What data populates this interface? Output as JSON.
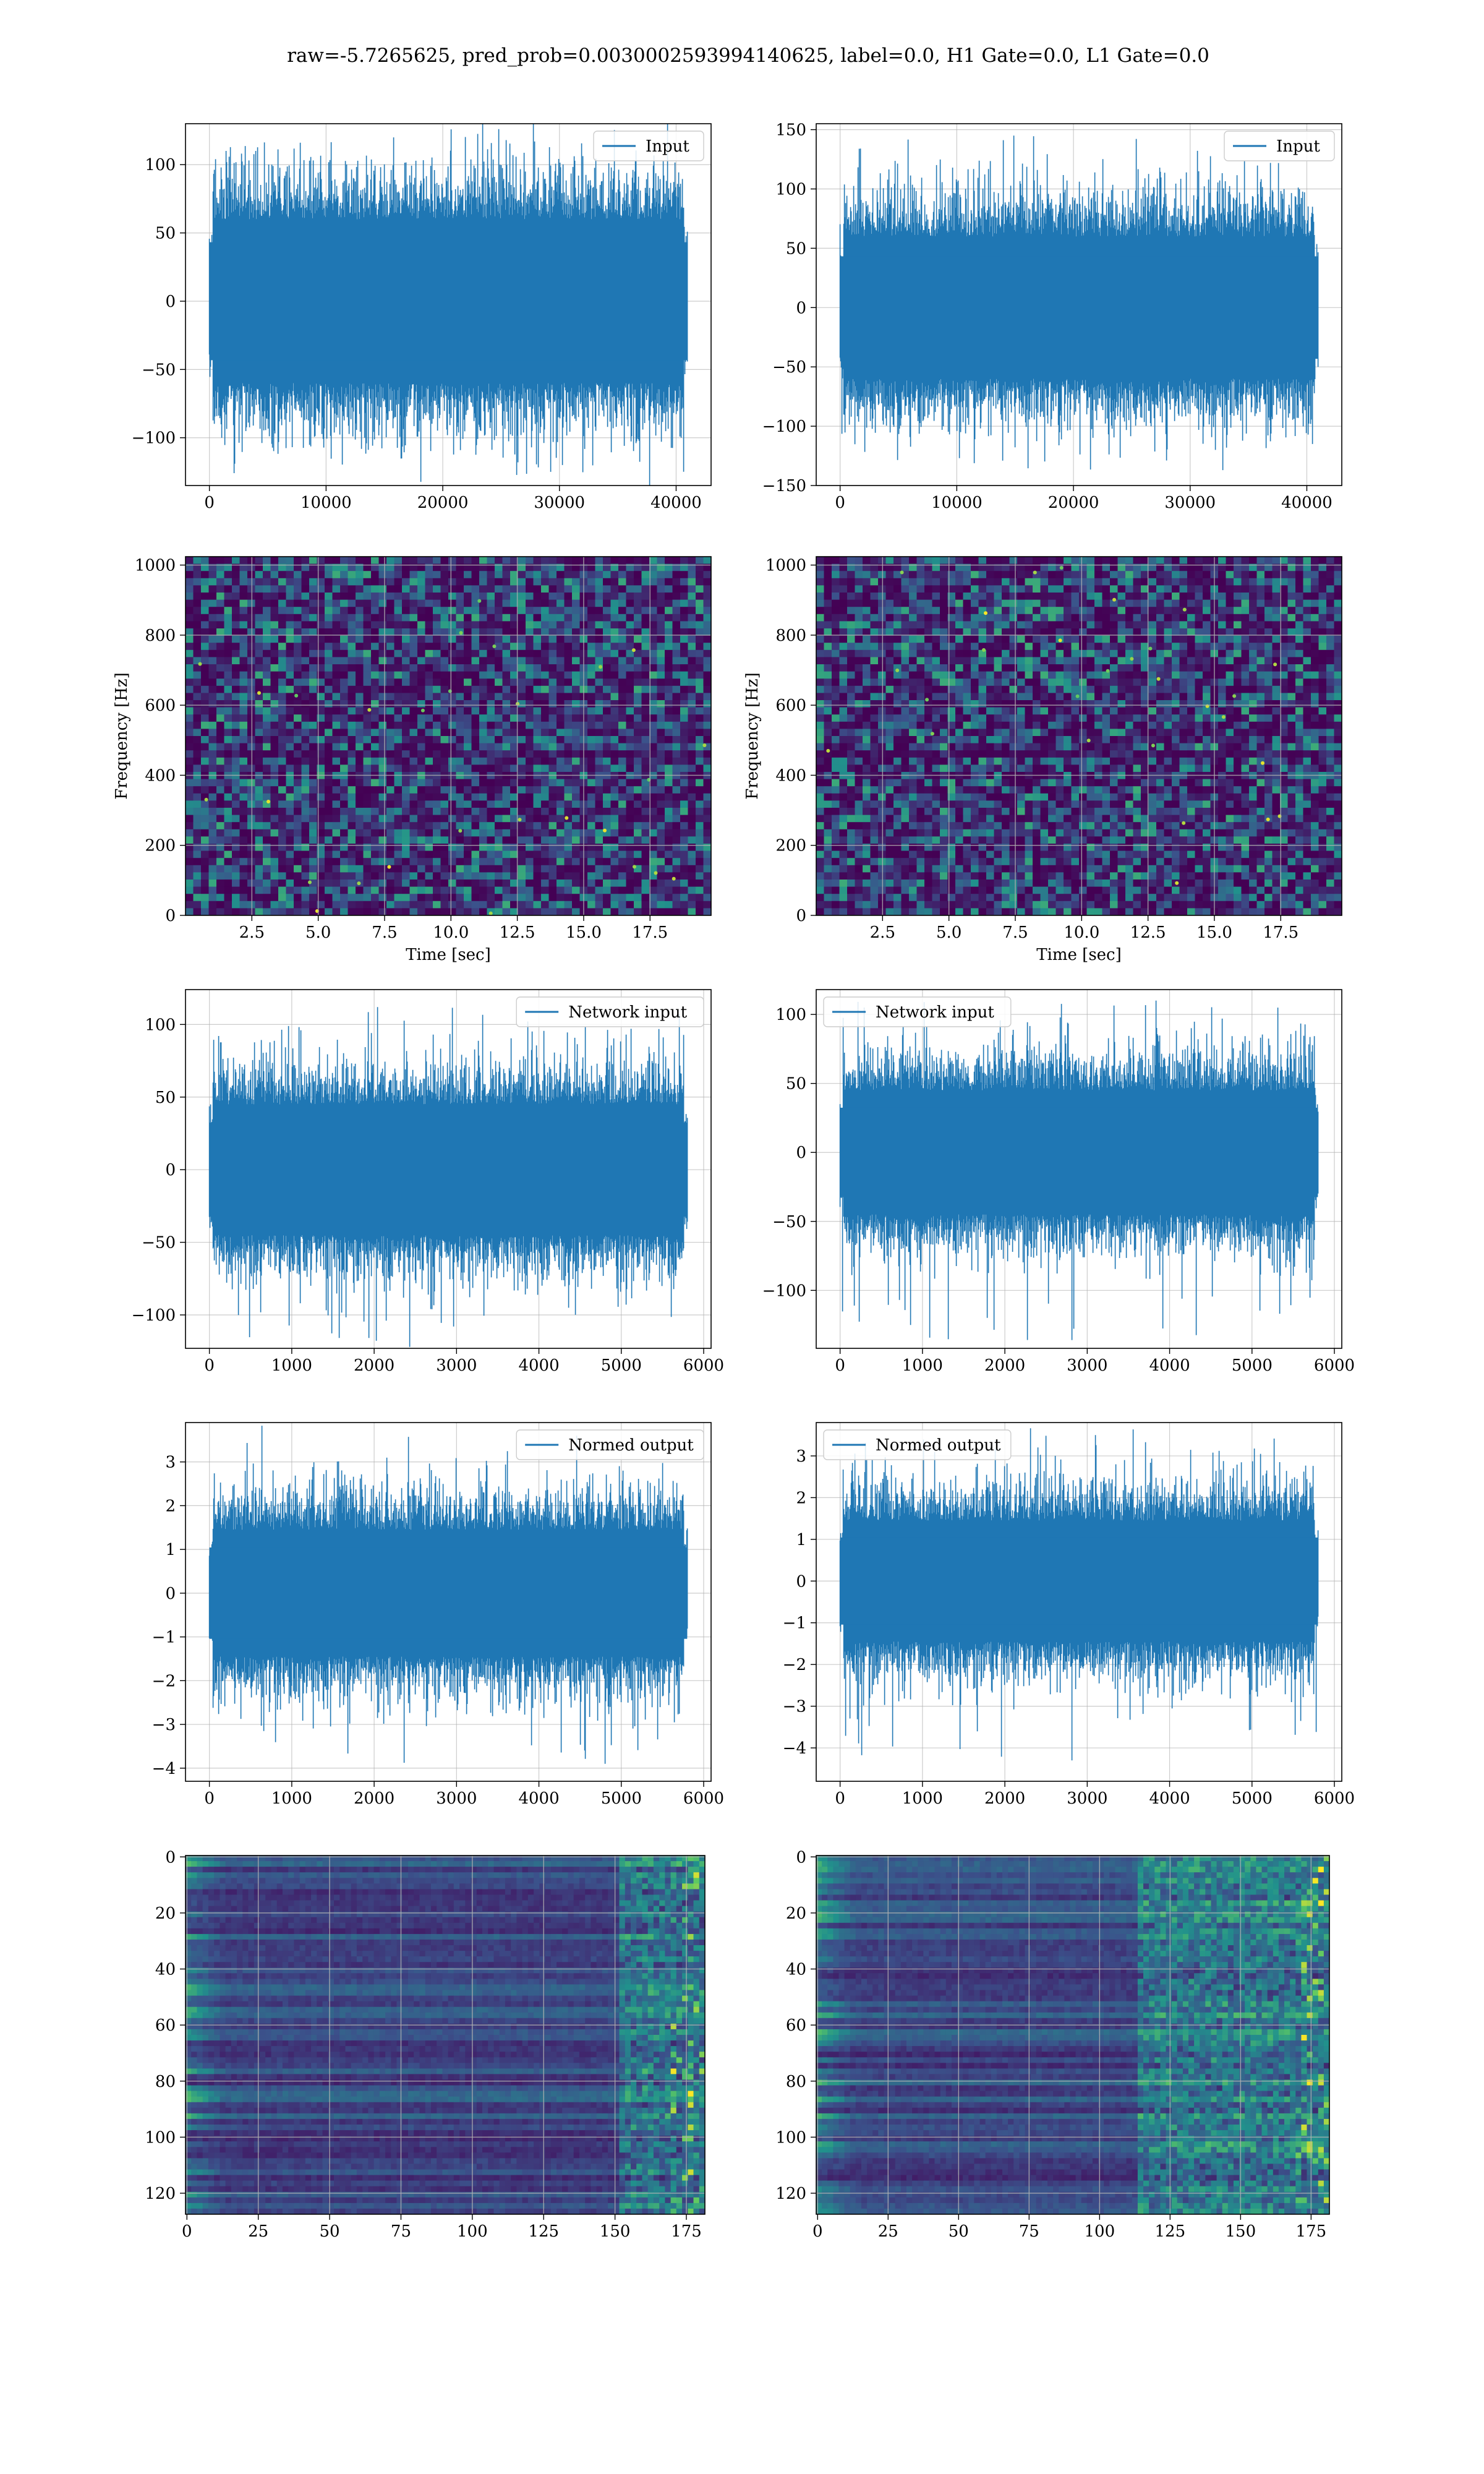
{
  "figure": {
    "suptitle": "raw=-5.7265625, pred_prob=0.0030002593994140625, label=0.0, H1 Gate=0.0, L1 Gate=0.0",
    "colors": {
      "line": "#1f77b4",
      "grid": "#b0b0b0",
      "axes": "#000000",
      "cmap": "viridis"
    }
  },
  "chart_data": [
    {
      "id": "input-h1",
      "type": "line",
      "row": 0,
      "col": 0,
      "series": [
        {
          "name": "Input"
        }
      ],
      "legend": "upper right",
      "x": {
        "range": [
          -2048,
          42996
        ],
        "ticks": [
          0,
          10000,
          20000,
          30000,
          40000
        ]
      },
      "y": {
        "range": [
          -135,
          130
        ],
        "ticks": [
          -100,
          -50,
          0,
          50,
          100
        ]
      },
      "signal": {
        "n_samples": 40960,
        "core_amplitude": 60,
        "peak_max": 120,
        "peak_min": -125
      }
    },
    {
      "id": "input-l1",
      "type": "line",
      "row": 0,
      "col": 1,
      "series": [
        {
          "name": "Input"
        }
      ],
      "legend": "upper right",
      "x": {
        "range": [
          -2048,
          42996
        ],
        "ticks": [
          0,
          10000,
          20000,
          30000,
          40000
        ]
      },
      "y": {
        "range": [
          -150,
          155
        ],
        "ticks": [
          -150,
          -100,
          -50,
          0,
          50,
          100,
          150
        ]
      },
      "signal": {
        "n_samples": 40960,
        "core_amplitude": 60,
        "peak_max": 145,
        "peak_min": -137
      }
    },
    {
      "id": "spectrogram-h1",
      "type": "heatmap",
      "row": 1,
      "col": 0,
      "xlabel": "Time [sec]",
      "ylabel": "Frequency [Hz]",
      "x": {
        "range": [
          0,
          19.8
        ],
        "ticks": [
          2.5,
          5.0,
          7.5,
          10.0,
          12.5,
          15.0,
          17.5
        ]
      },
      "y": {
        "range": [
          0,
          1024
        ],
        "ticks": [
          0,
          200,
          400,
          600,
          800,
          1000
        ]
      }
    },
    {
      "id": "spectrogram-l1",
      "type": "heatmap",
      "row": 1,
      "col": 1,
      "xlabel": "Time [sec]",
      "ylabel": "Frequency [Hz]",
      "x": {
        "range": [
          0,
          19.8
        ],
        "ticks": [
          2.5,
          5.0,
          7.5,
          10.0,
          12.5,
          15.0,
          17.5
        ]
      },
      "y": {
        "range": [
          0,
          1024
        ],
        "ticks": [
          0,
          200,
          400,
          600,
          800,
          1000
        ]
      }
    },
    {
      "id": "network-input-h1",
      "type": "line",
      "row": 2,
      "col": 0,
      "series": [
        {
          "name": "Network input"
        }
      ],
      "legend": "upper right",
      "x": {
        "range": [
          -290,
          6090
        ],
        "ticks": [
          0,
          1000,
          2000,
          3000,
          4000,
          5000,
          6000
        ]
      },
      "y": {
        "range": [
          -123,
          124
        ],
        "ticks": [
          -100,
          -50,
          0,
          50,
          100
        ]
      },
      "signal": {
        "n_samples": 5800,
        "core_amplitude": 45,
        "peak_max": 112,
        "peak_min": -122
      }
    },
    {
      "id": "network-input-l1",
      "type": "line",
      "row": 2,
      "col": 1,
      "series": [
        {
          "name": "Network input"
        }
      ],
      "legend": "upper left",
      "x": {
        "range": [
          -290,
          6090
        ],
        "ticks": [
          0,
          1000,
          2000,
          3000,
          4000,
          5000,
          6000
        ]
      },
      "y": {
        "range": [
          -142,
          118
        ],
        "ticks": [
          -100,
          -50,
          0,
          50,
          100
        ]
      },
      "signal": {
        "n_samples": 5800,
        "core_amplitude": 45,
        "peak_max": 110,
        "peak_min": -136
      }
    },
    {
      "id": "normed-output-h1",
      "type": "line",
      "row": 3,
      "col": 0,
      "series": [
        {
          "name": "Normed output"
        }
      ],
      "legend": "upper right",
      "x": {
        "range": [
          -290,
          6090
        ],
        "ticks": [
          0,
          1000,
          2000,
          3000,
          4000,
          5000,
          6000
        ]
      },
      "y": {
        "range": [
          -4.3,
          3.9
        ],
        "ticks": [
          -4,
          -3,
          -2,
          -1,
          0,
          1,
          2,
          3
        ]
      },
      "signal": {
        "n_samples": 5800,
        "core_amplitude": 1.45,
        "peak_max": 3.6,
        "peak_min": -3.9
      }
    },
    {
      "id": "normed-output-l1",
      "type": "line",
      "row": 3,
      "col": 1,
      "series": [
        {
          "name": "Normed output"
        }
      ],
      "legend": "upper left",
      "x": {
        "range": [
          -290,
          6090
        ],
        "ticks": [
          0,
          1000,
          2000,
          3000,
          4000,
          5000,
          6000
        ]
      },
      "y": {
        "range": [
          -4.8,
          3.8
        ],
        "ticks": [
          -4,
          -3,
          -2,
          -1,
          0,
          1,
          2,
          3
        ]
      },
      "signal": {
        "n_samples": 5800,
        "core_amplitude": 1.45,
        "peak_max": 3.5,
        "peak_min": -4.3
      }
    },
    {
      "id": "feature-map-h1",
      "type": "heatmap",
      "row": 4,
      "col": 0,
      "y_inverted": true,
      "x": {
        "range": [
          -0.5,
          181.5
        ],
        "ticks": [
          0,
          25,
          50,
          75,
          100,
          125,
          150,
          175
        ]
      },
      "y": {
        "range": [
          -0.5,
          127.5
        ],
        "ticks": [
          0,
          20,
          40,
          60,
          80,
          100,
          120
        ]
      }
    },
    {
      "id": "feature-map-l1",
      "type": "heatmap",
      "row": 4,
      "col": 1,
      "y_inverted": true,
      "x": {
        "range": [
          -0.5,
          181.5
        ],
        "ticks": [
          0,
          25,
          50,
          75,
          100,
          125,
          150,
          175
        ]
      },
      "y": {
        "range": [
          -0.5,
          127.5
        ],
        "ticks": [
          0,
          20,
          40,
          60,
          80,
          100,
          120
        ]
      }
    }
  ]
}
